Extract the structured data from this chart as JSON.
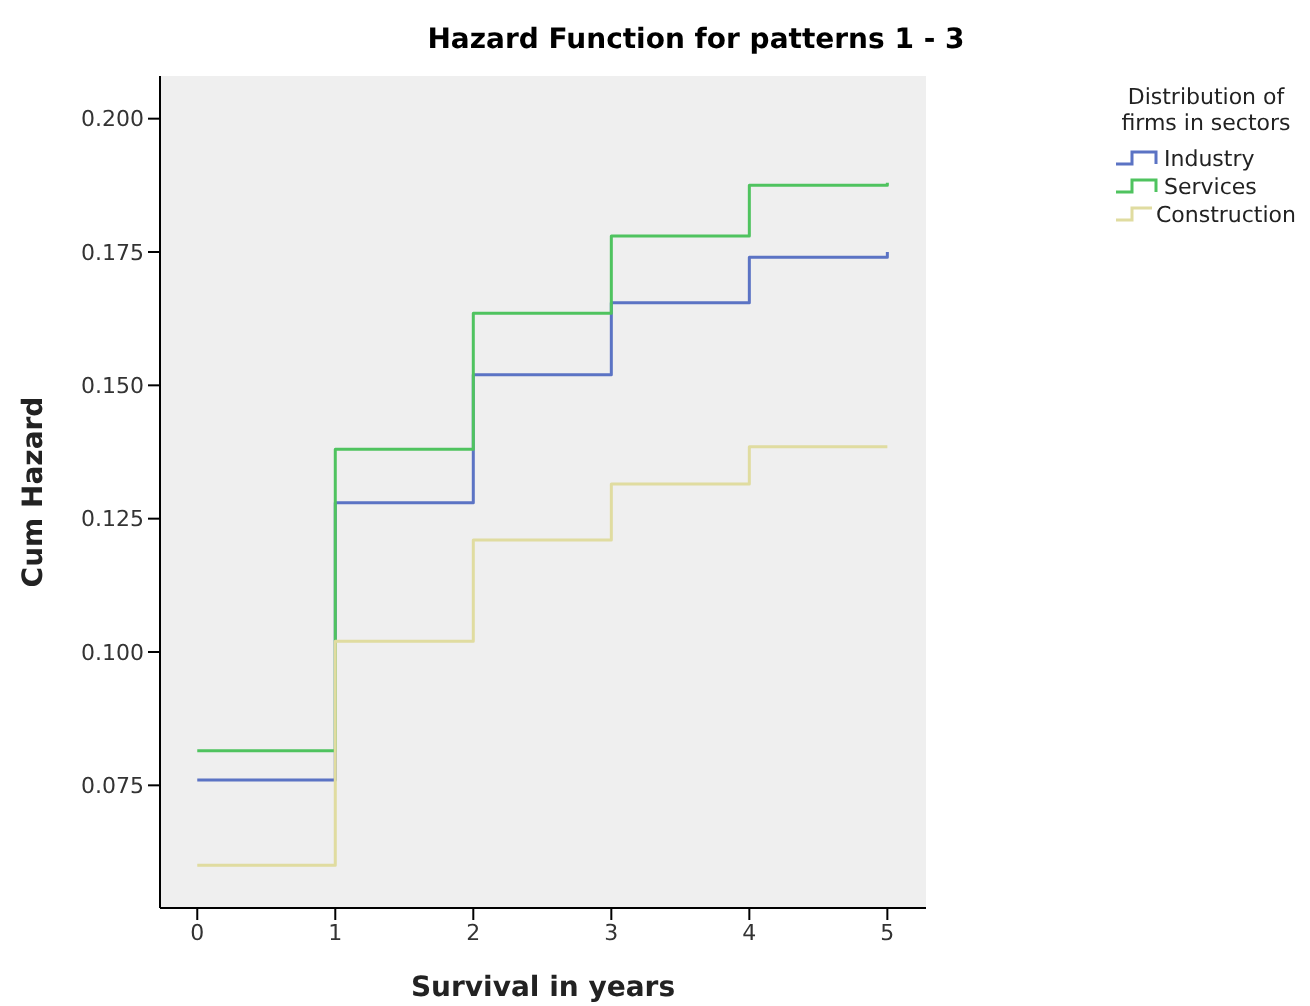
{
  "chart_data": {
    "type": "step",
    "title": "Hazard Function for patterns 1 - 3",
    "xlabel": "Survival in years",
    "ylabel": "Cum Hazard",
    "legend_title": "Distribution of firms in sectors",
    "legend": "top right",
    "grid": false,
    "x": [
      0,
      1,
      2,
      3,
      4,
      5
    ],
    "xlim": [
      -0.27,
      5.28
    ],
    "xticks": [
      0,
      1,
      2,
      3,
      4,
      5
    ],
    "ylim": [
      0.052,
      0.208
    ],
    "yticks": [
      {
        "value": 0.075,
        "label": "0.075"
      },
      {
        "value": 0.1,
        "label": "0.100"
      },
      {
        "value": 0.125,
        "label": "0.125"
      },
      {
        "value": 0.15,
        "label": "0.150"
      },
      {
        "value": 0.175,
        "label": "0.175"
      },
      {
        "value": 0.2,
        "label": "0.200"
      }
    ],
    "series": [
      {
        "name": "Industry",
        "color": "#5b73c4",
        "values": [
          0.076,
          0.128,
          0.152,
          0.1655,
          0.174,
          0.175
        ]
      },
      {
        "name": "Services",
        "color": "#4fc35f",
        "values": [
          0.0815,
          0.138,
          0.1635,
          0.178,
          0.1875,
          0.188
        ]
      },
      {
        "name": "Construction",
        "color": "#e0dca0",
        "values": [
          0.06,
          0.102,
          0.121,
          0.1315,
          0.1385,
          0.1385
        ]
      }
    ]
  }
}
